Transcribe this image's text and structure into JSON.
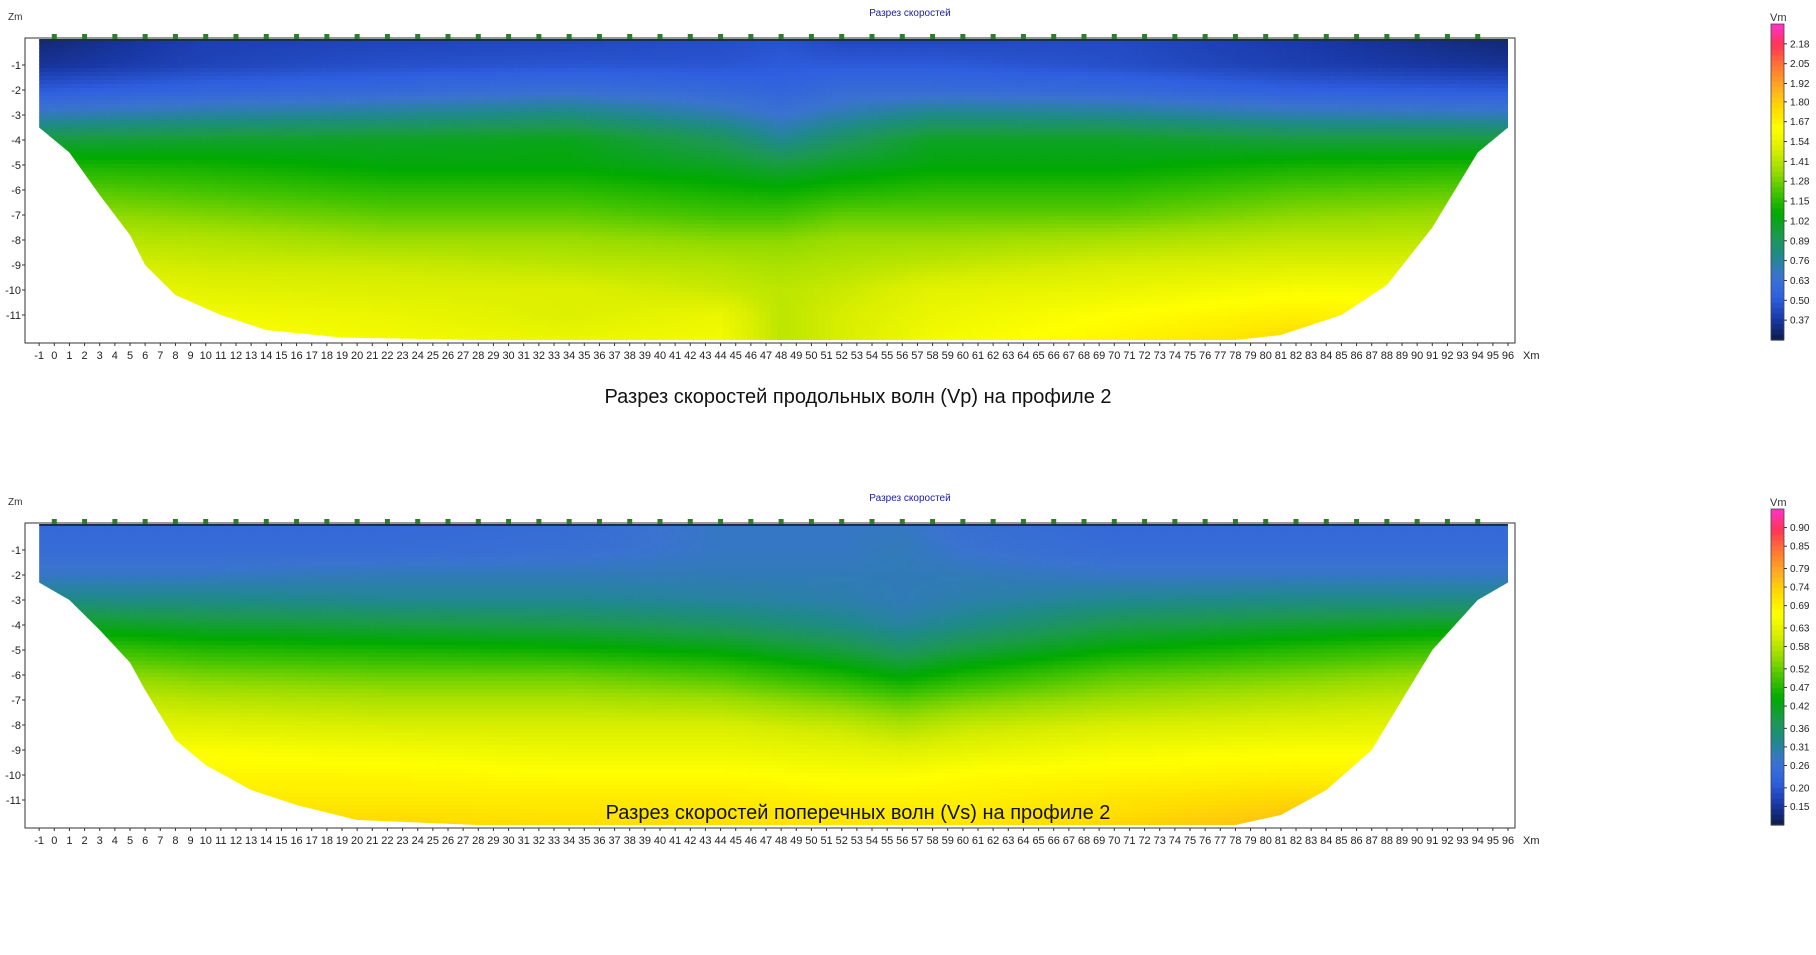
{
  "chart_data": [
    {
      "type": "heatmap",
      "title": "Разрез скоростей",
      "xlabel": "Xm",
      "ylabel": "Zm",
      "colorbar_label": "Vm",
      "caption": "Разрез скоростей продольных волн (Vp) на профиле 2",
      "xlim": [
        -2,
        96
      ],
      "ylim": [
        -12,
        0
      ],
      "x_ticks": [
        -1,
        0,
        1,
        2,
        3,
        4,
        5,
        6,
        7,
        8,
        9,
        10,
        11,
        12,
        13,
        14,
        15,
        16,
        17,
        18,
        19,
        20,
        21,
        22,
        23,
        24,
        25,
        26,
        27,
        28,
        29,
        30,
        31,
        32,
        33,
        34,
        35,
        36,
        37,
        38,
        39,
        40,
        41,
        42,
        43,
        44,
        45,
        46,
        47,
        48,
        49,
        50,
        51,
        52,
        53,
        54,
        55,
        56,
        57,
        58,
        59,
        60,
        61,
        62,
        63,
        64,
        65,
        66,
        67,
        68,
        69,
        70,
        71,
        72,
        73,
        74,
        75,
        76,
        77,
        78,
        79,
        80,
        81,
        82,
        83,
        84,
        85,
        86,
        87,
        88,
        89,
        90,
        91,
        92,
        93,
        94,
        95,
        96
      ],
      "y_ticks": [
        -1,
        -2,
        -3,
        -4,
        -5,
        -6,
        -7,
        -8,
        -9,
        -10,
        -11
      ],
      "colorbar_ticks": [
        "2.18",
        "2.05",
        "1.92",
        "1.80",
        "1.67",
        "1.54",
        "1.41",
        "1.28",
        "1.15",
        "1.02",
        "0.89",
        "0.76",
        "0.63",
        "0.50",
        "0.37"
      ],
      "colorbar_range": [
        0.24,
        2.31
      ],
      "geophones_x": [
        0,
        2,
        4,
        6,
        8,
        10,
        12,
        14,
        16,
        18,
        20,
        22,
        24,
        26,
        28,
        30,
        32,
        34,
        36,
        38,
        40,
        42,
        44,
        46,
        48,
        50,
        52,
        54,
        56,
        58,
        60,
        62,
        64,
        66,
        68,
        70,
        72,
        74,
        76,
        78,
        80,
        82,
        84,
        86,
        88,
        90,
        92,
        94
      ],
      "section_bottom_depth": [
        [
          -1,
          -3.5
        ],
        [
          1,
          -4.5
        ],
        [
          3,
          -6.2
        ],
        [
          5,
          -7.8
        ],
        [
          6,
          -9.0
        ],
        [
          8,
          -10.2
        ],
        [
          11,
          -11.0
        ],
        [
          14,
          -11.6
        ],
        [
          19,
          -11.9
        ],
        [
          28,
          -12.0
        ],
        [
          78,
          -12.0
        ],
        [
          81,
          -11.8
        ],
        [
          85,
          -11.0
        ],
        [
          88,
          -9.8
        ],
        [
          91,
          -7.5
        ],
        [
          94,
          -4.5
        ],
        [
          96,
          -3.5
        ]
      ],
      "velocity_grid": {
        "x": [
          -1,
          10,
          22,
          34,
          44,
          48,
          52,
          58,
          70,
          82,
          96
        ],
        "z": [
          0,
          -1,
          -2,
          -3,
          -4,
          -5,
          -6,
          -7,
          -8,
          -9,
          -10,
          -11,
          -12
        ],
        "v": [
          [
            0.3,
            0.4,
            0.42,
            0.43,
            0.45,
            0.47,
            0.43,
            0.43,
            0.44,
            0.38,
            0.3
          ],
          [
            0.35,
            0.42,
            0.46,
            0.48,
            0.48,
            0.5,
            0.5,
            0.5,
            0.46,
            0.4,
            0.35
          ],
          [
            0.5,
            0.55,
            0.58,
            0.62,
            0.58,
            0.55,
            0.6,
            0.6,
            0.58,
            0.52,
            0.5
          ],
          [
            0.7,
            0.75,
            0.78,
            0.82,
            0.72,
            0.65,
            0.72,
            0.8,
            0.78,
            0.72,
            0.7
          ],
          [
            0.95,
            0.98,
            1.0,
            1.02,
            0.9,
            0.78,
            0.88,
            1.0,
            1.0,
            0.95,
            0.95
          ],
          [
            1.12,
            1.1,
            1.05,
            1.05,
            1.0,
            0.95,
            1.0,
            1.05,
            1.05,
            1.1,
            1.12
          ],
          [
            1.25,
            1.2,
            1.15,
            1.15,
            1.1,
            1.08,
            1.12,
            1.15,
            1.15,
            1.22,
            1.25
          ],
          [
            1.35,
            1.3,
            1.25,
            1.25,
            1.2,
            1.2,
            1.25,
            1.25,
            1.25,
            1.32,
            1.35
          ],
          [
            1.42,
            1.4,
            1.35,
            1.35,
            1.32,
            1.32,
            1.35,
            1.35,
            1.38,
            1.42,
            1.42
          ],
          [
            1.5,
            1.46,
            1.45,
            1.42,
            1.4,
            1.38,
            1.4,
            1.43,
            1.48,
            1.5,
            1.5
          ],
          [
            1.58,
            1.52,
            1.5,
            1.5,
            1.45,
            1.42,
            1.45,
            1.52,
            1.55,
            1.6,
            1.58
          ],
          [
            1.62,
            1.58,
            1.55,
            1.5,
            1.55,
            1.42,
            1.48,
            1.55,
            1.62,
            1.68,
            1.62
          ],
          [
            1.65,
            1.62,
            1.58,
            1.55,
            1.58,
            1.42,
            1.48,
            1.58,
            1.66,
            1.76,
            1.65
          ]
        ]
      }
    },
    {
      "type": "heatmap",
      "title": "Разрез скоростей",
      "xlabel": "Xm",
      "ylabel": "Zm",
      "colorbar_label": "Vm",
      "caption": "Разрез скоростей поперечных волн (Vs) на профиле 2",
      "xlim": [
        -2,
        96
      ],
      "ylim": [
        -12,
        0
      ],
      "x_ticks": [
        -1,
        0,
        1,
        2,
        3,
        4,
        5,
        6,
        7,
        8,
        9,
        10,
        11,
        12,
        13,
        14,
        15,
        16,
        17,
        18,
        19,
        20,
        21,
        22,
        23,
        24,
        25,
        26,
        27,
        28,
        29,
        30,
        31,
        32,
        33,
        34,
        35,
        36,
        37,
        38,
        39,
        40,
        41,
        42,
        43,
        44,
        45,
        46,
        47,
        48,
        49,
        50,
        51,
        52,
        53,
        54,
        55,
        56,
        57,
        58,
        59,
        60,
        61,
        62,
        63,
        64,
        65,
        66,
        67,
        68,
        69,
        70,
        71,
        72,
        73,
        74,
        75,
        76,
        77,
        78,
        79,
        80,
        81,
        82,
        83,
        84,
        85,
        86,
        87,
        88,
        89,
        90,
        91,
        92,
        93,
        94,
        95,
        96
      ],
      "y_ticks": [
        -1,
        -2,
        -3,
        -4,
        -5,
        -6,
        -7,
        -8,
        -9,
        -10,
        -11
      ],
      "colorbar_ticks": [
        "0.90",
        "0.85",
        "0.79",
        "0.74",
        "0.69",
        "0.63",
        "0.58",
        "0.52",
        "0.47",
        "0.42",
        "0.36",
        "0.31",
        "0.26",
        "0.20",
        "0.15"
      ],
      "colorbar_range": [
        0.1,
        0.95
      ],
      "geophones_x": [
        0,
        2,
        4,
        6,
        8,
        10,
        12,
        14,
        16,
        18,
        20,
        22,
        24,
        26,
        28,
        30,
        32,
        34,
        36,
        38,
        40,
        42,
        44,
        46,
        48,
        50,
        52,
        54,
        56,
        58,
        60,
        62,
        64,
        66,
        68,
        70,
        72,
        74,
        76,
        78,
        80,
        82,
        84,
        86,
        88,
        90,
        92,
        94
      ],
      "section_bottom_depth": [
        [
          -1,
          -2.3
        ],
        [
          1,
          -3.0
        ],
        [
          3,
          -4.2
        ],
        [
          5,
          -5.5
        ],
        [
          6,
          -6.6
        ],
        [
          7,
          -7.6
        ],
        [
          8,
          -8.6
        ],
        [
          10,
          -9.6
        ],
        [
          13,
          -10.6
        ],
        [
          16,
          -11.2
        ],
        [
          20,
          -11.8
        ],
        [
          28,
          -12.0
        ],
        [
          78,
          -12.0
        ],
        [
          81,
          -11.6
        ],
        [
          84,
          -10.6
        ],
        [
          87,
          -9.0
        ],
        [
          89,
          -7.0
        ],
        [
          91,
          -5.0
        ],
        [
          94,
          -3.0
        ],
        [
          96,
          -2.3
        ]
      ],
      "velocity_grid": {
        "x": [
          -1,
          10,
          22,
          34,
          44,
          52,
          56,
          60,
          70,
          82,
          96
        ],
        "z": [
          0,
          -1,
          -2,
          -3,
          -4,
          -5,
          -6,
          -7,
          -8,
          -9,
          -10,
          -11,
          -12
        ],
        "v": [
          [
            0.24,
            0.24,
            0.24,
            0.25,
            0.28,
            0.28,
            0.28,
            0.26,
            0.24,
            0.24,
            0.24
          ],
          [
            0.25,
            0.25,
            0.25,
            0.26,
            0.28,
            0.28,
            0.29,
            0.27,
            0.25,
            0.25,
            0.25
          ],
          [
            0.28,
            0.28,
            0.29,
            0.29,
            0.29,
            0.29,
            0.29,
            0.29,
            0.28,
            0.28,
            0.28
          ],
          [
            0.33,
            0.33,
            0.32,
            0.32,
            0.31,
            0.3,
            0.29,
            0.3,
            0.32,
            0.33,
            0.33
          ],
          [
            0.42,
            0.4,
            0.39,
            0.38,
            0.36,
            0.33,
            0.31,
            0.33,
            0.38,
            0.4,
            0.42
          ],
          [
            0.5,
            0.47,
            0.46,
            0.45,
            0.43,
            0.39,
            0.36,
            0.39,
            0.44,
            0.47,
            0.5
          ],
          [
            0.56,
            0.53,
            0.52,
            0.52,
            0.5,
            0.46,
            0.43,
            0.46,
            0.51,
            0.53,
            0.56
          ],
          [
            0.6,
            0.58,
            0.57,
            0.57,
            0.56,
            0.53,
            0.51,
            0.53,
            0.56,
            0.58,
            0.6
          ],
          [
            0.63,
            0.62,
            0.61,
            0.61,
            0.61,
            0.59,
            0.57,
            0.59,
            0.61,
            0.62,
            0.63
          ],
          [
            0.66,
            0.66,
            0.65,
            0.64,
            0.64,
            0.63,
            0.62,
            0.63,
            0.65,
            0.66,
            0.66
          ],
          [
            0.67,
            0.68,
            0.68,
            0.67,
            0.67,
            0.66,
            0.66,
            0.67,
            0.68,
            0.69,
            0.68
          ],
          [
            0.69,
            0.7,
            0.7,
            0.7,
            0.7,
            0.69,
            0.69,
            0.69,
            0.71,
            0.73,
            0.7
          ],
          [
            0.7,
            0.72,
            0.73,
            0.72,
            0.72,
            0.71,
            0.71,
            0.71,
            0.73,
            0.76,
            0.72
          ]
        ]
      }
    }
  ],
  "colors": {
    "scale": [
      "#0d1b4c",
      "#1939a8",
      "#2f5fe0",
      "#3a73d0",
      "#1f8a8a",
      "#1b9a4a",
      "#00aa00",
      "#44c400",
      "#99dc00",
      "#d8ee00",
      "#ffff00",
      "#ffdc00",
      "#ffaa22",
      "#ff7733",
      "#ff3355",
      "#ff33cc"
    ],
    "frame": "#333333",
    "geophone": "#2e7d2e",
    "title": "#1a1aa6"
  }
}
